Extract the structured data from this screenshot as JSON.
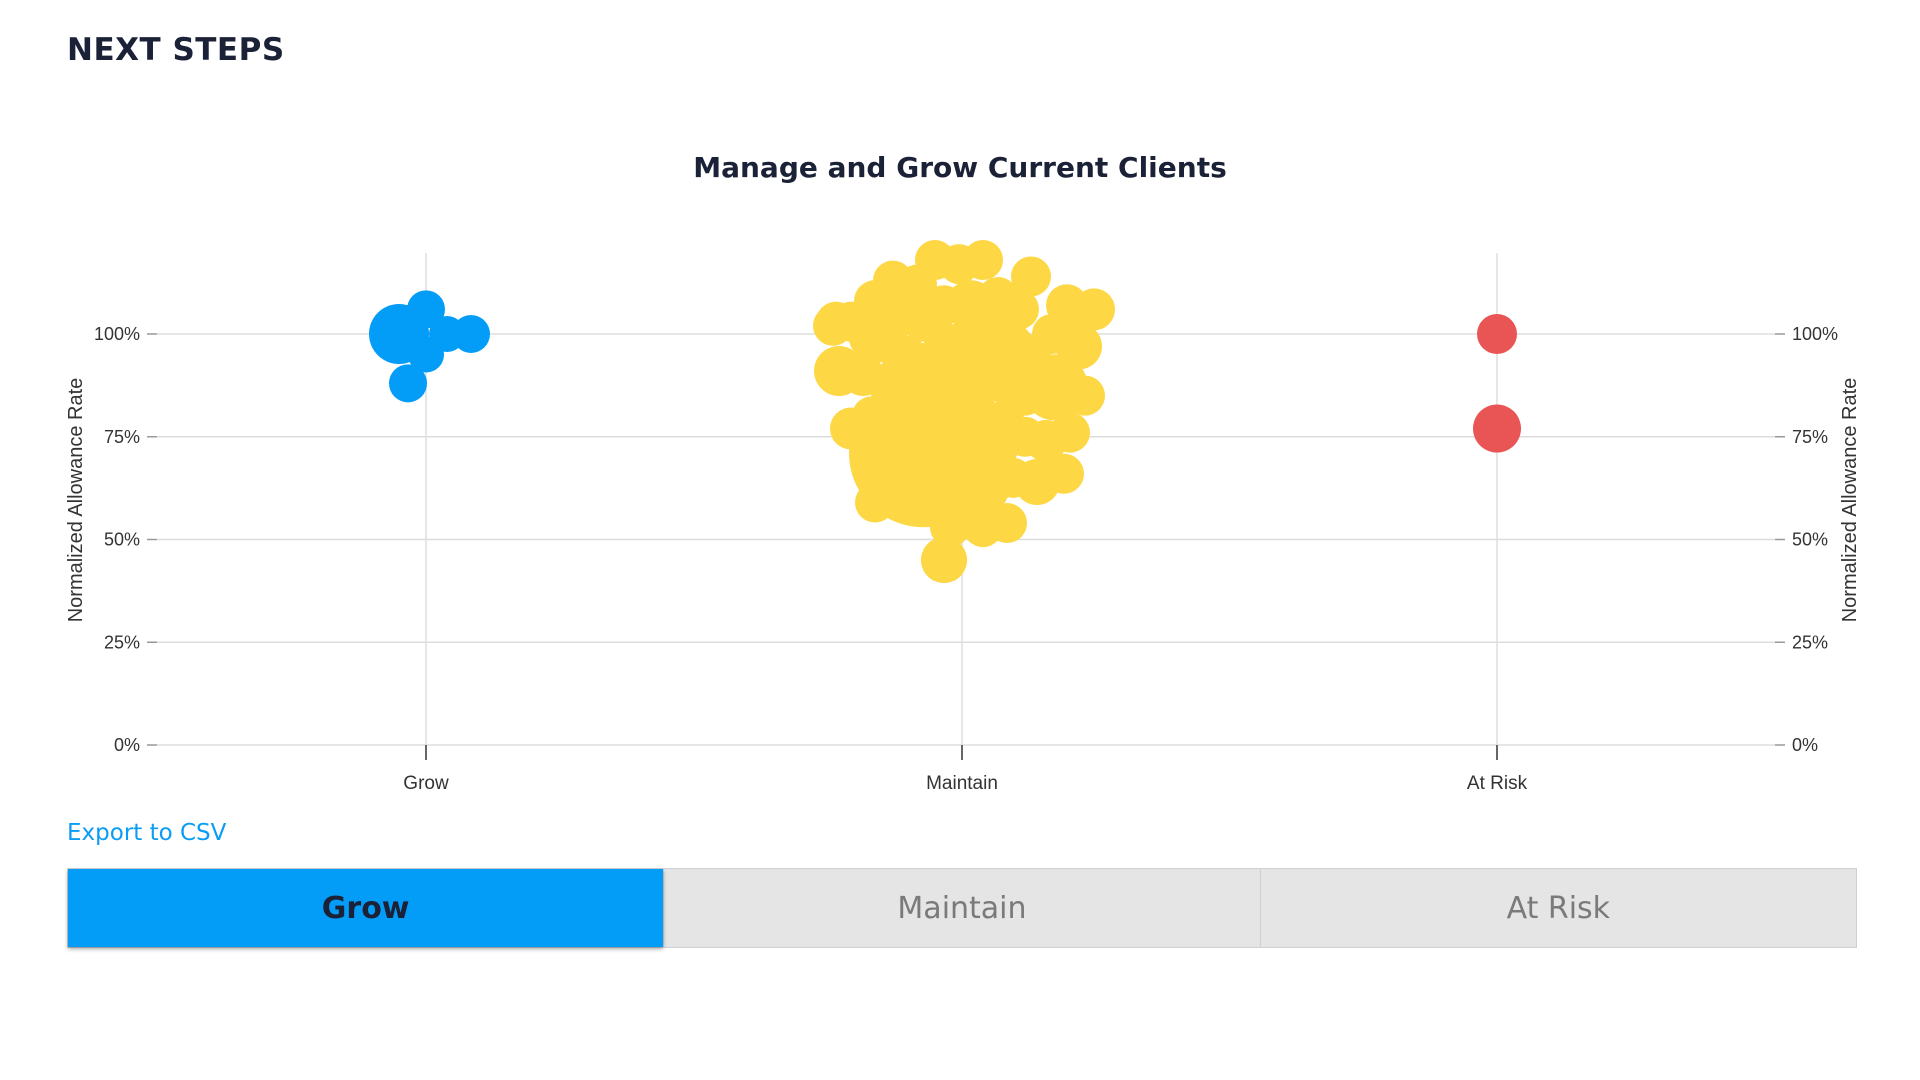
{
  "page": {
    "heading": "NEXT STEPS"
  },
  "export_link": "Export to CSV",
  "tabs": [
    {
      "label": "Grow",
      "active": true
    },
    {
      "label": "Maintain",
      "active": false
    },
    {
      "label": "At Risk",
      "active": false
    }
  ],
  "colors": {
    "grow": "#039cf7",
    "maintain": "#fdd744",
    "at_risk": "#e95454",
    "grid": "#dddddd",
    "accent_link": "#0b9cf5"
  },
  "chart_data": {
    "type": "scatter",
    "title": "Manage and Grow Current Clients",
    "ylabel": "Normalized Allowance Rate",
    "ylabel_right": "Normalized Allowance Rate",
    "categories": [
      "Grow",
      "Maintain",
      "At Risk"
    ],
    "ylim": [
      0,
      1.2
    ],
    "yticks": [
      {
        "value": 0,
        "label": "0%"
      },
      {
        "value": 0.25,
        "label": "25%"
      },
      {
        "value": 0.5,
        "label": "50%"
      },
      {
        "value": 0.75,
        "label": "75%"
      },
      {
        "value": 1.0,
        "label": "100%"
      }
    ],
    "grid": true,
    "series": [
      {
        "name": "Grow",
        "category": "Grow",
        "color": "#039cf7",
        "points": [
          {
            "offset": -0.09,
            "y": 1.0,
            "size": 3.0
          },
          {
            "offset": 0.0,
            "y": 1.06,
            "size": 1.9
          },
          {
            "offset": 0.07,
            "y": 1.0,
            "size": 1.8
          },
          {
            "offset": 0.0,
            "y": 0.95,
            "size": 1.8
          },
          {
            "offset": 0.15,
            "y": 1.0,
            "size": 1.9
          },
          {
            "offset": -0.06,
            "y": 0.88,
            "size": 1.9
          }
        ]
      },
      {
        "name": "Maintain",
        "category": "Maintain",
        "color": "#fdd744",
        "points": [
          {
            "offset": -0.13,
            "y": 0.71,
            "size": 7.4
          },
          {
            "offset": 0.11,
            "y": 0.94,
            "size": 4.3
          },
          {
            "offset": 0.31,
            "y": 0.87,
            "size": 3.3
          },
          {
            "offset": -0.41,
            "y": 0.91,
            "size": 2.5
          },
          {
            "offset": 0.03,
            "y": 1.07,
            "size": 2.5
          },
          {
            "offset": -0.19,
            "y": 0.94,
            "size": 2.3
          },
          {
            "offset": 0.39,
            "y": 0.97,
            "size": 2.3
          },
          {
            "offset": 0.25,
            "y": 0.64,
            "size": 2.3
          },
          {
            "offset": -0.29,
            "y": 1.08,
            "size": 2.1
          },
          {
            "offset": 0.35,
            "y": 1.07,
            "size": 2.1
          },
          {
            "offset": 0.44,
            "y": 1.06,
            "size": 2.1
          },
          {
            "offset": -0.37,
            "y": 0.77,
            "size": 2.1
          },
          {
            "offset": -0.33,
            "y": 0.9,
            "size": 2.1
          },
          {
            "offset": -0.06,
            "y": 0.45,
            "size": 2.3
          },
          {
            "offset": 0.28,
            "y": 0.74,
            "size": 2.1
          },
          {
            "offset": 0.23,
            "y": 1.14,
            "size": 2.0
          },
          {
            "offset": -0.23,
            "y": 1.13,
            "size": 2.0
          },
          {
            "offset": -0.37,
            "y": 1.03,
            "size": 2.0
          },
          {
            "offset": -0.43,
            "y": 1.02,
            "size": 2.0
          },
          {
            "offset": -0.31,
            "y": 0.99,
            "size": 2.0
          },
          {
            "offset": -0.21,
            "y": 1.04,
            "size": 2.0
          },
          {
            "offset": -0.15,
            "y": 1.12,
            "size": 2.0
          },
          {
            "offset": -0.09,
            "y": 1.18,
            "size": 2.0
          },
          {
            "offset": -0.01,
            "y": 1.17,
            "size": 2.0
          },
          {
            "offset": 0.07,
            "y": 1.18,
            "size": 2.0
          },
          {
            "offset": 0.12,
            "y": 1.09,
            "size": 2.0
          },
          {
            "offset": 0.19,
            "y": 1.06,
            "size": 2.0
          },
          {
            "offset": -0.06,
            "y": 1.07,
            "size": 2.0
          },
          {
            "offset": -0.13,
            "y": 1.03,
            "size": 2.0
          },
          {
            "offset": -0.06,
            "y": 0.98,
            "size": 2.0
          },
          {
            "offset": 0.0,
            "y": 0.98,
            "size": 2.0
          },
          {
            "offset": -0.12,
            "y": 0.93,
            "size": 2.0
          },
          {
            "offset": -0.05,
            "y": 0.9,
            "size": 2.0
          },
          {
            "offset": -0.27,
            "y": 0.98,
            "size": 2.0
          },
          {
            "offset": -0.25,
            "y": 0.88,
            "size": 2.0
          },
          {
            "offset": 0.02,
            "y": 0.85,
            "size": 2.0
          },
          {
            "offset": 0.06,
            "y": 0.8,
            "size": 2.0
          },
          {
            "offset": 0.14,
            "y": 0.79,
            "size": 2.0
          },
          {
            "offset": 0.21,
            "y": 0.85,
            "size": 2.0
          },
          {
            "offset": 0.23,
            "y": 0.95,
            "size": 2.0
          },
          {
            "offset": 0.3,
            "y": 1.0,
            "size": 2.0
          },
          {
            "offset": 0.41,
            "y": 0.85,
            "size": 2.0
          },
          {
            "offset": 0.36,
            "y": 0.76,
            "size": 2.0
          },
          {
            "offset": 0.34,
            "y": 0.66,
            "size": 2.0
          },
          {
            "offset": 0.21,
            "y": 0.75,
            "size": 2.0
          },
          {
            "offset": 0.17,
            "y": 0.65,
            "size": 2.0
          },
          {
            "offset": 0.12,
            "y": 0.72,
            "size": 2.0
          },
          {
            "offset": 0.04,
            "y": 0.71,
            "size": 2.0
          },
          {
            "offset": 0.09,
            "y": 0.62,
            "size": 2.0
          },
          {
            "offset": 0.02,
            "y": 0.6,
            "size": 2.0
          },
          {
            "offset": 0.07,
            "y": 0.53,
            "size": 2.0
          },
          {
            "offset": 0.15,
            "y": 0.54,
            "size": 2.0
          },
          {
            "offset": -0.04,
            "y": 0.53,
            "size": 2.0
          },
          {
            "offset": -0.3,
            "y": 0.69,
            "size": 2.0
          },
          {
            "offset": -0.29,
            "y": 0.59,
            "size": 2.0
          },
          {
            "offset": -0.3,
            "y": 0.8,
            "size": 2.0
          },
          {
            "offset": -0.42,
            "y": 1.03,
            "size": 2.0
          }
        ]
      },
      {
        "name": "At Risk",
        "category": "At Risk",
        "color": "#e95454",
        "points": [
          {
            "offset": 0.0,
            "y": 1.0,
            "size": 2.0
          },
          {
            "offset": 0.0,
            "y": 0.77,
            "size": 2.4
          }
        ]
      }
    ]
  }
}
